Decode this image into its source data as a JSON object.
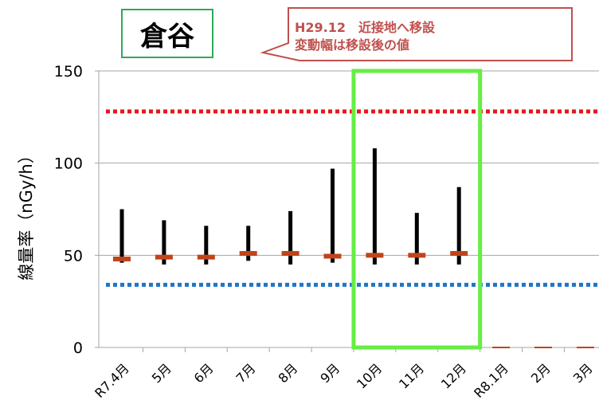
{
  "chart_data": {
    "type": "bar",
    "title": "倉谷",
    "annotation": [
      "H29.12　近接地へ移設",
      "変動幅は移設後の値"
    ],
    "ylabel": "線量率（nGy/h）",
    "xlabel": "",
    "ylim": [
      0,
      150
    ],
    "yticks": [
      0,
      50,
      100,
      150
    ],
    "grid": true,
    "categories": [
      "R7.4月",
      "5月",
      "6月",
      "7月",
      "8月",
      "9月",
      "10月",
      "11月",
      "12月",
      "R8.1月",
      "2月",
      "3月"
    ],
    "series": [
      {
        "role": "range",
        "min": [
          46,
          45,
          45,
          47,
          45,
          46,
          45,
          45,
          45,
          null,
          null,
          null
        ],
        "max": [
          75,
          69,
          66,
          66,
          74,
          97,
          108,
          73,
          87,
          null,
          null,
          null
        ]
      },
      {
        "role": "mean",
        "values": [
          48,
          49,
          49,
          51,
          51,
          49.5,
          50,
          50,
          51,
          0,
          0,
          0
        ]
      }
    ],
    "reference_lines": [
      {
        "value": 128,
        "color": "#e8161a",
        "style": "dotted"
      },
      {
        "value": 34,
        "color": "#2175c6",
        "style": "dotted"
      }
    ],
    "highlight": {
      "from_category": "10月",
      "to_category": "12月",
      "color": "#66ee44"
    },
    "colors": {
      "range": "#000000",
      "mean": "#c0441a",
      "callout_border": "#c0504d",
      "title_border": "#2eaa5a"
    }
  }
}
